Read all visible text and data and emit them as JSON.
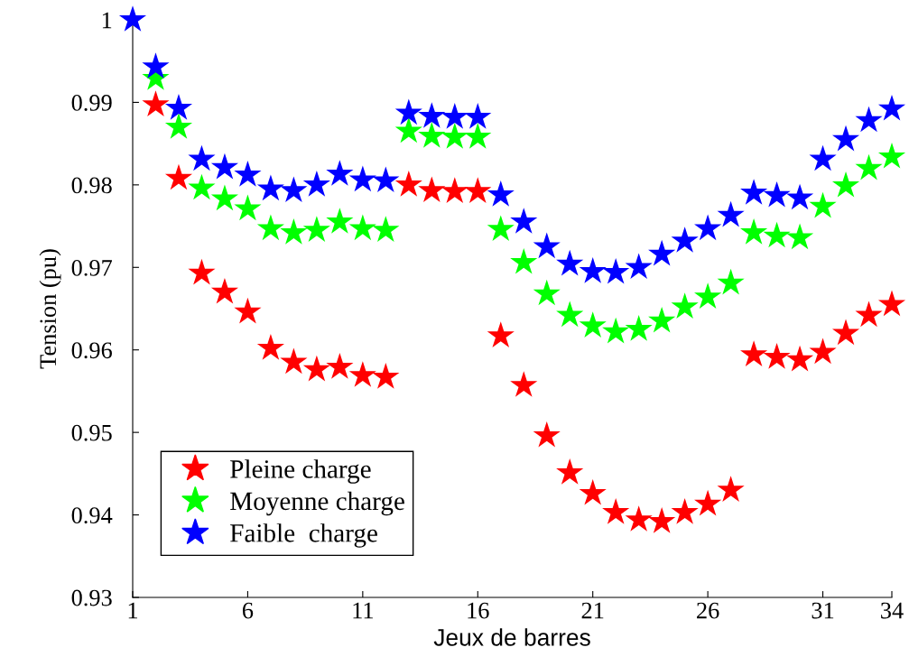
{
  "chart_data": {
    "type": "scatter",
    "xlabel": "Jeux de barres",
    "ylabel": "Tension (pu)",
    "x": [
      1,
      2,
      3,
      4,
      5,
      6,
      7,
      8,
      9,
      10,
      11,
      12,
      13,
      14,
      15,
      16,
      17,
      18,
      19,
      20,
      21,
      22,
      23,
      24,
      25,
      26,
      27,
      28,
      29,
      30,
      31,
      32,
      33,
      34
    ],
    "series": [
      {
        "name": "Pleine charge",
        "color": "#ff0000",
        "values": [
          null,
          0.9897,
          0.9808,
          0.9693,
          0.967,
          0.9646,
          0.9602,
          0.9585,
          0.9576,
          0.9579,
          0.9569,
          0.9567,
          0.98,
          0.9793,
          0.9792,
          0.9792,
          0.9617,
          0.9557,
          0.9496,
          0.9451,
          0.9426,
          0.9403,
          0.9394,
          0.9392,
          0.9403,
          0.9413,
          0.943,
          0.9594,
          0.9591,
          0.9588,
          0.9597,
          0.962,
          0.9642,
          0.9655
        ]
      },
      {
        "name": "Moyenne charge",
        "color": "#00ff00",
        "values": [
          null,
          0.9929,
          0.987,
          0.9796,
          0.9783,
          0.9771,
          0.9747,
          0.9742,
          0.9745,
          0.9755,
          0.9747,
          0.9745,
          0.9865,
          0.9859,
          0.9858,
          0.9858,
          0.9746,
          0.9706,
          0.9668,
          0.9642,
          0.9629,
          0.9622,
          0.9625,
          0.9635,
          0.9652,
          0.9664,
          0.9681,
          0.9742,
          0.9738,
          0.9736,
          0.9774,
          0.9799,
          0.982,
          0.9834
        ]
      },
      {
        "name": "Faible  charge",
        "color": "#0000ff",
        "values": [
          1.0,
          0.9943,
          0.9893,
          0.9831,
          0.9821,
          0.9812,
          0.9795,
          0.9793,
          0.98,
          0.9813,
          0.9806,
          0.9805,
          0.9887,
          0.9883,
          0.9882,
          0.9882,
          0.9788,
          0.9755,
          0.9725,
          0.9704,
          0.9695,
          0.9694,
          0.97,
          0.9716,
          0.9732,
          0.9747,
          0.9763,
          0.979,
          0.9787,
          0.9784,
          0.9831,
          0.9855,
          0.9878,
          0.9892
        ]
      }
    ],
    "xlim": [
      1,
      34
    ],
    "xticks": [
      1,
      6,
      11,
      16,
      21,
      26,
      31,
      34
    ],
    "ylim": [
      0.93,
      1
    ],
    "yticks": [
      0.93,
      0.94,
      0.95,
      0.96,
      0.97,
      0.98,
      0.99,
      1
    ],
    "marker": "star",
    "legend": "bottom left",
    "grid": false
  }
}
